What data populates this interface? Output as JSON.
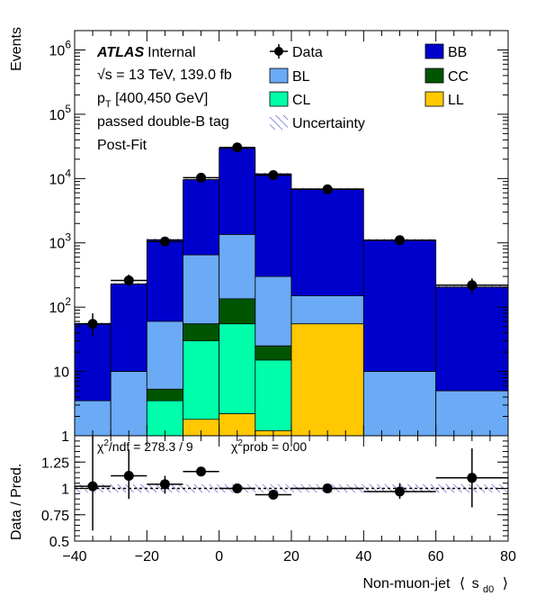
{
  "chart_data": {
    "type": "histogram",
    "info": {
      "atlas": "ATLAS",
      "internal": "Internal",
      "energy": "√s = 13 TeV, 139.0 fb",
      "pt_p": "p",
      "pt_sub": "T",
      "pt_rest": " [400,450 GeV]",
      "tag": "passed double-B tag",
      "fit": "Post-Fit"
    },
    "ylabel": "Events",
    "ratio_ylabel": "Data / Pred.",
    "xlabel": {
      "prefix": "Non-muon-jet",
      "lang": "⟨",
      "s": "s",
      "sub": "d0",
      "rang": "⟩"
    },
    "chi2": {
      "ndf_label_chi": "χ",
      "ndf_label_sup": "2",
      "ndf_label_rest": "/ndf = 278.3 / 9",
      "prob_label_chi": "χ",
      "prob_label_sup": "2",
      "prob_label_rest": "prob = 0.00"
    },
    "legend": {
      "data": "Data",
      "bb": "BB",
      "bl": "BL",
      "cc": "CC",
      "cl": "CL",
      "ll": "LL",
      "unc": "Uncertainty"
    },
    "colors": {
      "bb": "#0000cc",
      "bl": "#6baaf5",
      "cc": "#005500",
      "cl": "#00ffaa",
      "ll": "#ffc800",
      "unc": "#3333cc"
    },
    "x_range": [
      -40,
      80
    ],
    "y_range_log": [
      1,
      2000000
    ],
    "ratio_range": [
      0.5,
      1.5
    ],
    "x_ticks": [
      -40,
      -20,
      0,
      20,
      40,
      60,
      80
    ],
    "x_tick_labels": [
      "−40",
      "−20",
      "0",
      "20",
      "40",
      "60",
      "80"
    ],
    "y_ticks": [
      {
        "v": 1,
        "label": "1",
        "exp": ""
      },
      {
        "v": 10,
        "label": "10",
        "exp": ""
      },
      {
        "v": 100,
        "label": "10",
        "exp": "2"
      },
      {
        "v": 1000,
        "label": "10",
        "exp": "3"
      },
      {
        "v": 10000,
        "label": "10",
        "exp": "4"
      },
      {
        "v": 100000,
        "label": "10",
        "exp": "5"
      },
      {
        "v": 1000000,
        "label": "10",
        "exp": "6"
      }
    ],
    "ratio_ticks": [
      {
        "v": 0.5,
        "label": "0.5"
      },
      {
        "v": 0.75,
        "label": "0.75"
      },
      {
        "v": 1,
        "label": "1"
      },
      {
        "v": 1.25,
        "label": "1.25"
      }
    ],
    "bins": [
      {
        "lo": -40,
        "hi": -30,
        "bl": 3.5,
        "cl": 0,
        "cc": 0,
        "ll": 0,
        "bb": 52
      },
      {
        "lo": -30,
        "hi": -20,
        "bl": 10,
        "cl": 0,
        "cc": 0,
        "ll": 0,
        "bb": 220
      },
      {
        "lo": -20,
        "hi": -10,
        "bl": 60,
        "cl": 3.5,
        "cc": 5.3,
        "ll": 0,
        "bb": 1050
      },
      {
        "lo": -10,
        "hi": 0,
        "bl": 650,
        "cl": 30,
        "cc": 55,
        "ll": 1.8,
        "bb": 8900
      },
      {
        "lo": 0,
        "hi": 10,
        "bl": 1350,
        "cl": 55,
        "cc": 135,
        "ll": 2.2,
        "bb": 28000
      },
      {
        "lo": 10,
        "hi": 20,
        "bl": 300,
        "cl": 15,
        "cc": 25,
        "ll": 1.2,
        "bb": 11500
      },
      {
        "lo": 20,
        "hi": 40,
        "bl": 150,
        "cl": 1,
        "cc": 1,
        "ll": 55,
        "bb": 6700
      },
      {
        "lo": 40,
        "hi": 60,
        "bl": 10,
        "cl": 0,
        "cc": 0,
        "ll": 0,
        "bb": 1100
      },
      {
        "lo": 60,
        "hi": 80,
        "bl": 5,
        "cl": 0,
        "cc": 0,
        "ll": 0,
        "bb": 200
      }
    ],
    "data": [
      {
        "x": -35,
        "y": 55,
        "ylo": 35,
        "yhi": 80,
        "xerr": 5,
        "r": 1.02,
        "rlo": 0.6,
        "rhi": 1.5
      },
      {
        "x": -25,
        "y": 260,
        "ylo": 210,
        "yhi": 320,
        "xerr": 5,
        "r": 1.12,
        "rlo": 0.9,
        "rhi": 1.37
      },
      {
        "x": -15,
        "y": 1050,
        "ylo": 950,
        "yhi": 1150,
        "xerr": 5,
        "r": 1.04,
        "rlo": 0.95,
        "rhi": 1.12
      },
      {
        "x": -5,
        "y": 10300,
        "ylo": 10000,
        "yhi": 10600,
        "xerr": 5,
        "r": 1.16,
        "rlo": 1.13,
        "rhi": 1.19
      },
      {
        "x": 5,
        "y": 30500,
        "ylo": 30000,
        "yhi": 31000,
        "xerr": 5,
        "r": 1.0,
        "rlo": 0.98,
        "rhi": 1.02
      },
      {
        "x": 15,
        "y": 11300,
        "ylo": 11000,
        "yhi": 11600,
        "xerr": 5,
        "r": 0.94,
        "rlo": 0.92,
        "rhi": 0.96
      },
      {
        "x": 30,
        "y": 6800,
        "ylo": 6600,
        "yhi": 7000,
        "xerr": 10,
        "r": 1.0,
        "rlo": 0.96,
        "rhi": 1.04
      },
      {
        "x": 50,
        "y": 1100,
        "ylo": 1030,
        "yhi": 1170,
        "xerr": 10,
        "r": 0.97,
        "rlo": 0.9,
        "rhi": 1.05
      },
      {
        "x": 70,
        "y": 220,
        "ylo": 160,
        "yhi": 280,
        "xerr": 10,
        "r": 1.1,
        "rlo": 0.82,
        "rhi": 1.38
      }
    ]
  }
}
